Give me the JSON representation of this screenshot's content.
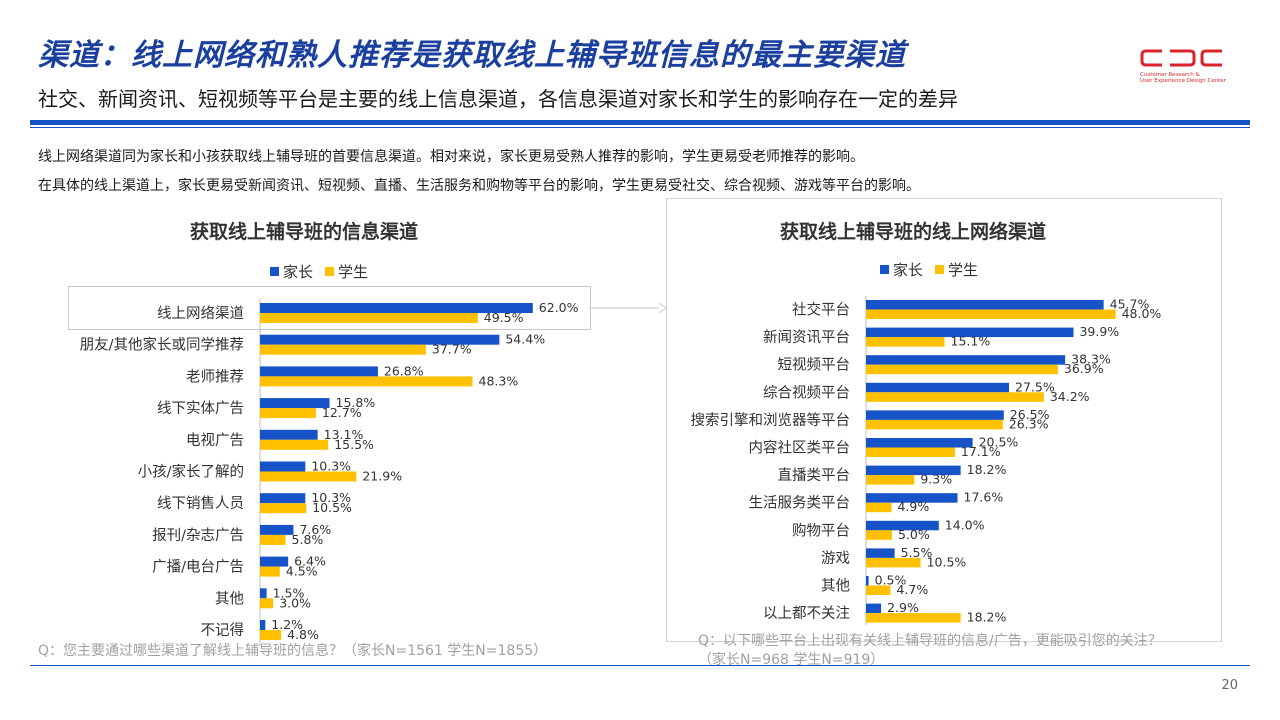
{
  "header": {
    "title": "渠道：线上网络和熟人推荐是获取线上辅导班信息的最主要渠道",
    "subtitle": "社交、新闻资讯、短视频等平台是主要的线上信息渠道，各信息渠道对家长和学生的影响存在一定的差异"
  },
  "logo": {
    "mark": "CDC",
    "line1": "Customer Research &",
    "line2": "User Experience Design Center"
  },
  "intro": {
    "line1": "线上网络渠道同为家长和小孩获取线上辅导班的首要信息渠道。相对来说，家长更易受熟人推荐的影响，学生更易受老师推荐的影响。",
    "line2": "在具体的线上渠道上，家长更易受新闻资讯、短视频、直播、生活服务和购物等平台的影响，学生更易受社交、综合视频、游戏等平台的影响。"
  },
  "colors": {
    "parent": "#1652c8",
    "student": "#ffc000",
    "title": "#1b3f9e",
    "logo": "#d9252a"
  },
  "legend": {
    "parent": "家长",
    "student": "学生"
  },
  "chart_data": [
    {
      "type": "bar",
      "orientation": "horizontal",
      "title": "获取线上辅导班的信息渠道",
      "categories": [
        "线上网络渠道",
        "朋友/其他家长或同学推荐",
        "老师推荐",
        "线下实体广告",
        "电视广告",
        "小孩/家长了解的",
        "线下销售人员",
        "报刊/杂志广告",
        "广播/电台广告",
        "其他",
        "不记得"
      ],
      "series": [
        {
          "name": "家长",
          "values": [
            62.0,
            54.4,
            26.8,
            15.8,
            13.1,
            10.3,
            10.3,
            7.6,
            6.4,
            1.5,
            1.2
          ]
        },
        {
          "name": "学生",
          "values": [
            49.5,
            37.7,
            48.3,
            12.7,
            15.5,
            21.9,
            10.5,
            5.8,
            4.5,
            3.0,
            4.8
          ]
        }
      ],
      "value_format": "percent",
      "note": "Q：您主要通过哪些渠道了解线上辅导班的信息？（家长N=1561     学生N=1855）"
    },
    {
      "type": "bar",
      "orientation": "horizontal",
      "title": "获取线上辅导班的线上网络渠道",
      "categories": [
        "社交平台",
        "新闻资讯平台",
        "短视频平台",
        "综合视频平台",
        "搜索引擎和浏览器等平台",
        "内容社区类平台",
        "直播类平台",
        "生活服务类平台",
        "购物平台",
        "游戏",
        "其他",
        "以上都不关注"
      ],
      "series": [
        {
          "name": "家长",
          "values": [
            45.7,
            39.9,
            38.3,
            27.5,
            26.5,
            20.5,
            18.2,
            17.6,
            14.0,
            5.5,
            0.5,
            2.9
          ]
        },
        {
          "name": "学生",
          "values": [
            48.0,
            15.1,
            36.9,
            34.2,
            26.3,
            17.1,
            9.3,
            4.9,
            5.0,
            10.5,
            4.7,
            18.2
          ]
        }
      ],
      "value_format": "percent",
      "note_line1": "Q：以下哪些平台上出现有关线上辅导班的信息/广告，更能吸引您的关注？",
      "note_line2": "（家长N=968     学生N=919）"
    }
  ],
  "page_number": "20"
}
